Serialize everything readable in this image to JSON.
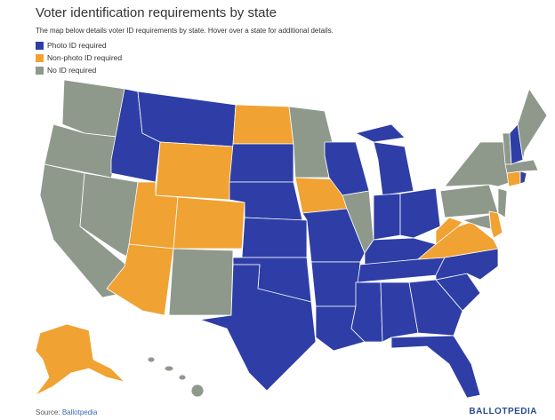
{
  "header": {
    "title": "Voter identification requirements by state",
    "subtitle": "The map below details voter ID requirements by state. Hover over a state for additional details."
  },
  "legend": [
    {
      "label": "Photo ID required",
      "color": "#2e3ea6"
    },
    {
      "label": "Non-photo ID required",
      "color": "#f0a232"
    },
    {
      "label": "No ID required",
      "color": "#8e998c"
    }
  ],
  "footer": {
    "source_label": "Source:",
    "source": "Ballotpedia",
    "logo": "BALLOTPEDIA"
  }
}
